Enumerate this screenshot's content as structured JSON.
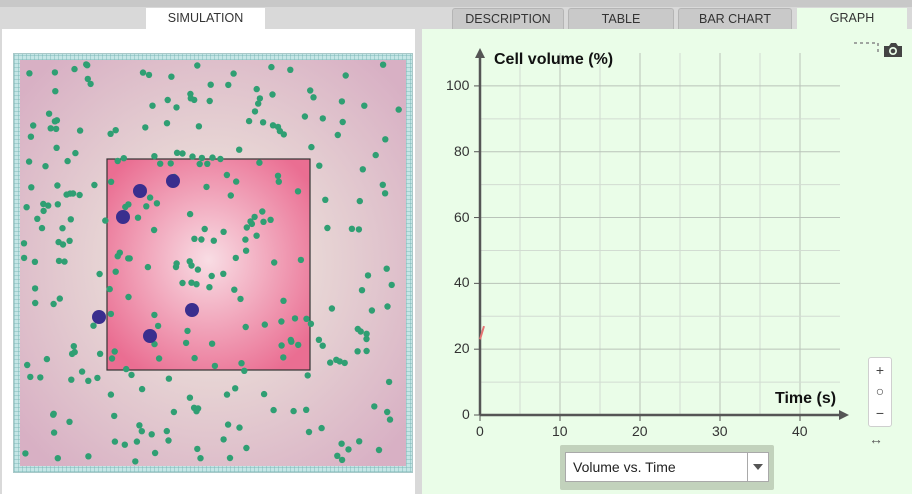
{
  "tabs": [
    {
      "label": "SIMULATION",
      "active": true
    },
    {
      "label": "DESCRIPTION",
      "active": false
    },
    {
      "label": "TABLE",
      "active": false
    },
    {
      "label": "BAR CHART",
      "active": false
    },
    {
      "label": "GRAPH",
      "active": true
    }
  ],
  "simulation": {
    "colors": {
      "outer": "#d8b0c4",
      "cell": "#ea6e92",
      "cell_center": "#f8dde4",
      "water": "#2f9f73",
      "solute": "#3a2e8e",
      "membrane": "#333333"
    }
  },
  "graph": {
    "select_value": "Volume vs. Time",
    "icons": {
      "camera": "camera-icon",
      "zoom_in": "zoom-in-icon",
      "zoom_reset": "zoom-reset-icon",
      "zoom_out": "zoom-out-icon",
      "pan": "pan-arrows-icon"
    }
  },
  "chart_data": {
    "type": "line",
    "xlabel": "Time (s)",
    "ylabel": "Cell volume (%)",
    "xlim": [
      0,
      45
    ],
    "ylim": [
      0,
      110
    ],
    "x_ticks": [
      0,
      10,
      20,
      30,
      40
    ],
    "y_ticks": [
      0,
      20,
      40,
      60,
      80,
      100
    ],
    "grid": true,
    "series": [
      {
        "color": "#e57373",
        "x": [
          0,
          0.5
        ],
        "y": [
          23,
          27
        ]
      }
    ]
  }
}
